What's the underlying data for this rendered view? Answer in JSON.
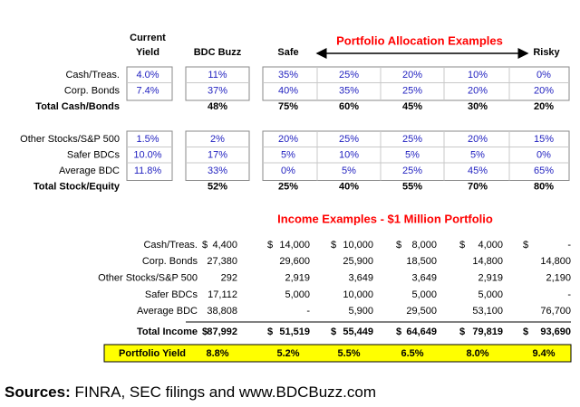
{
  "header": {
    "current_yield": [
      "Current",
      "Yield"
    ],
    "bdc_buzz": "BDC Buzz",
    "safe": "Safe",
    "allocation_title": "Portfolio Allocation Examples",
    "risky": "Risky"
  },
  "allocation": {
    "groups": [
      {
        "rows": [
          {
            "label": "Cash/Treas.",
            "yield": "4.0%",
            "values": [
              "11%",
              "35%",
              "25%",
              "20%",
              "10%",
              "0%"
            ]
          },
          {
            "label": "Corp. Bonds",
            "yield": "7.4%",
            "values": [
              "37%",
              "40%",
              "35%",
              "25%",
              "20%",
              "20%"
            ]
          }
        ],
        "total": {
          "label": "Total Cash/Bonds",
          "values": [
            "48%",
            "75%",
            "60%",
            "45%",
            "30%",
            "20%"
          ]
        }
      },
      {
        "rows": [
          {
            "label": "Other Stocks/S&P 500",
            "yield": "1.5%",
            "values": [
              "2%",
              "20%",
              "25%",
              "25%",
              "20%",
              "15%"
            ]
          },
          {
            "label": "Safer BDCs",
            "yield": "10.0%",
            "values": [
              "17%",
              "5%",
              "10%",
              "5%",
              "5%",
              "0%"
            ]
          },
          {
            "label": "Average BDC",
            "yield": "11.8%",
            "values": [
              "33%",
              "0%",
              "5%",
              "25%",
              "45%",
              "65%"
            ]
          }
        ],
        "total": {
          "label": "Total Stock/Equity",
          "values": [
            "52%",
            "25%",
            "40%",
            "55%",
            "70%",
            "80%"
          ]
        }
      }
    ]
  },
  "income": {
    "title": "Income Examples - $1 Million Portfolio",
    "rows": [
      {
        "label": "Cash/Treas.",
        "currency": "$",
        "values": [
          "4,400",
          "14,000",
          "10,000",
          "8,000",
          "4,000",
          "-"
        ]
      },
      {
        "label": "Corp. Bonds",
        "values": [
          "27,380",
          "29,600",
          "25,900",
          "18,500",
          "14,800",
          "14,800"
        ]
      },
      {
        "label": "Other Stocks/S&P 500",
        "values": [
          "292",
          "2,919",
          "3,649",
          "3,649",
          "2,919",
          "2,190"
        ]
      },
      {
        "label": "Safer BDCs",
        "values": [
          "17,112",
          "5,000",
          "10,000",
          "5,000",
          "5,000",
          "-"
        ]
      },
      {
        "label": "Average BDC",
        "values": [
          "38,808",
          "-",
          "5,900",
          "29,500",
          "53,100",
          "76,700"
        ]
      }
    ],
    "total": {
      "label": "Total Income",
      "currency": "$",
      "values": [
        "87,992",
        "51,519",
        "55,449",
        "64,649",
        "79,819",
        "93,690"
      ]
    },
    "yield_row": {
      "label": "Portfolio Yield",
      "values": [
        "8.8%",
        "5.2%",
        "5.5%",
        "6.5%",
        "8.0%",
        "9.4%"
      ]
    }
  },
  "sources": {
    "label": "Sources:",
    "text": "FINRA, SEC filings and www.BDCBuzz.com"
  }
}
